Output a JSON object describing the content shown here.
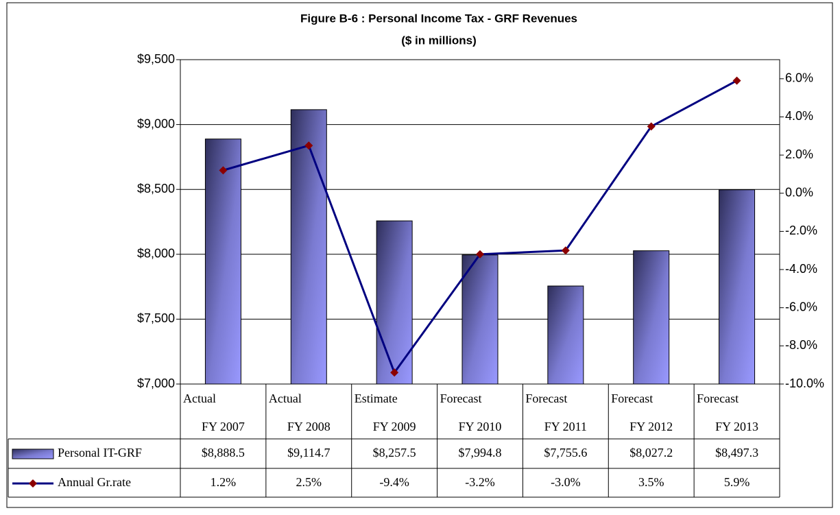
{
  "chart_data": {
    "type": "bar-line",
    "title": "Figure B-6 : Personal Income Tax - GRF Revenues",
    "subtitle": "($ in millions)",
    "categories": [
      [
        "Actual",
        "FY 2007"
      ],
      [
        "Actual",
        "FY 2008"
      ],
      [
        "Estimate",
        "FY 2009"
      ],
      [
        "Forecast",
        "FY 2010"
      ],
      [
        "Forecast",
        "FY 2011"
      ],
      [
        "Forecast",
        "FY 2012"
      ],
      [
        "Forecast",
        "FY 2013"
      ]
    ],
    "series": [
      {
        "name": "Personal IT-GRF",
        "type": "bar",
        "color": "#9999ff",
        "values": [
          8888.5,
          9114.7,
          8257.5,
          7994.8,
          7755.6,
          8027.2,
          8497.3
        ],
        "value_labels": [
          "$8,888.5",
          "$9,114.7",
          "$8,257.5",
          "$7,994.8",
          "$7,755.6",
          "$8,027.2",
          "$8,497.3"
        ]
      },
      {
        "name": "Annual Gr.rate",
        "type": "line",
        "axis": "y2",
        "color": "#000080",
        "marker_color": "#8b0000",
        "values": [
          1.2,
          2.5,
          -9.4,
          -3.2,
          -3.0,
          3.5,
          5.9
        ],
        "value_labels": [
          "1.2%",
          "2.5%",
          "-9.4%",
          "-3.2%",
          "-3.0%",
          "3.5%",
          "5.9%"
        ]
      }
    ],
    "ylim": [
      7000,
      9500
    ],
    "yticks": [
      {
        "value": 7000,
        "label": "$7,000"
      },
      {
        "value": 7500,
        "label": "$7,500"
      },
      {
        "value": 8000,
        "label": "$8,000"
      },
      {
        "value": 8500,
        "label": "$8,500"
      },
      {
        "value": 9000,
        "label": "$9,000"
      },
      {
        "value": 9500,
        "label": "$9,500"
      }
    ],
    "y2lim": [
      -10,
      7
    ],
    "y2ticks": [
      {
        "value": -10,
        "label": "-10.0%"
      },
      {
        "value": -8,
        "label": "-8.0%"
      },
      {
        "value": -6,
        "label": "-6.0%"
      },
      {
        "value": -4,
        "label": "-4.0%"
      },
      {
        "value": -2,
        "label": "-2.0%"
      },
      {
        "value": 0,
        "label": "0.0%"
      },
      {
        "value": 2,
        "label": "2.0%"
      },
      {
        "value": 4,
        "label": "4.0%"
      },
      {
        "value": 6,
        "label": "6.0%"
      }
    ],
    "grid": true
  }
}
